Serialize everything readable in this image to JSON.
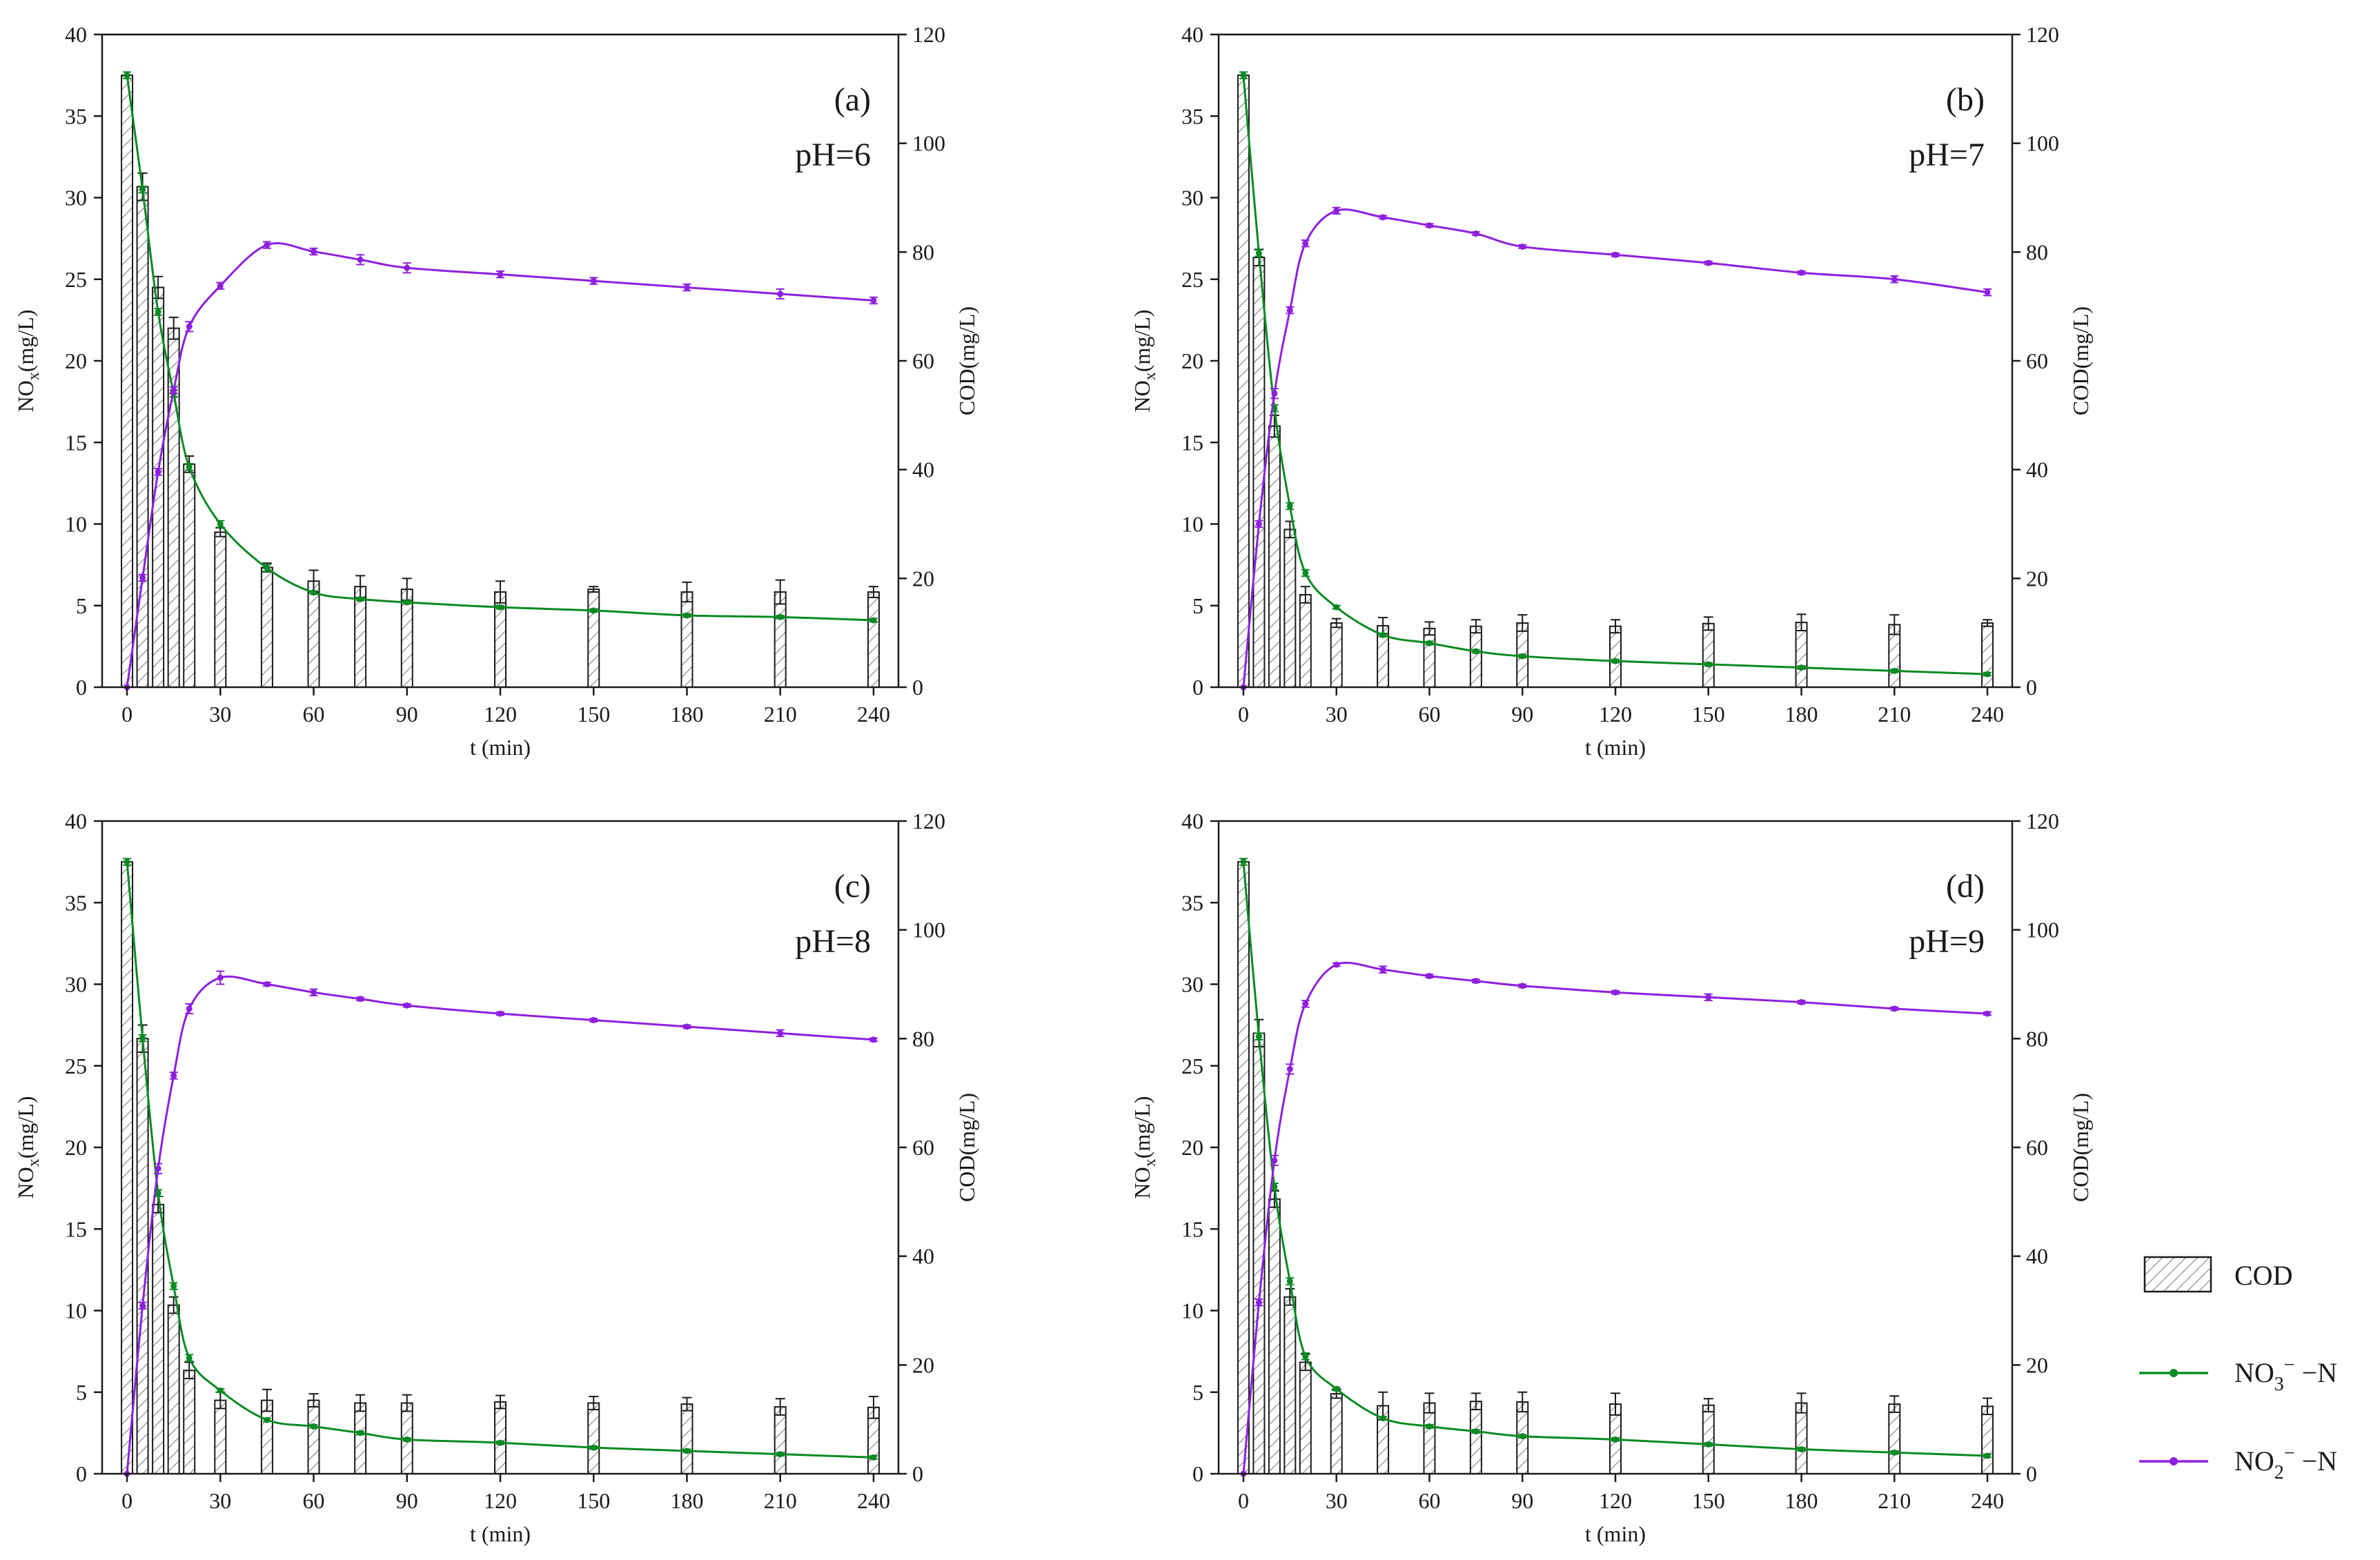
{
  "colors": {
    "nitrate": "#0a8a22",
    "nitrite": "#8f1fe0",
    "bar_edge": "#1a1a1a",
    "hatch": "#8a8a8a"
  },
  "legend": {
    "cod": "COD",
    "nitrate_main": "NO",
    "nitrate_sub": "3",
    "nitrate_sup": "−",
    "nitrate_tail": " −N",
    "nitrite_main": "NO",
    "nitrite_sub": "2",
    "nitrite_sup": "−",
    "nitrite_tail": " −N"
  },
  "chart_data": [
    {
      "type": "bar+line",
      "panel": "(a)",
      "condition": "pH=6",
      "xlabel": "t (min)",
      "ylabel_left_main": "NO",
      "ylabel_left_sub": "x",
      "ylabel_left_tail": "(mg/L)",
      "ylabel_right": "COD(mg/L)",
      "xlim": [
        -8,
        248
      ],
      "ylim_left": [
        0,
        40
      ],
      "ylim_right": [
        0,
        120
      ],
      "x_ticks": [
        0,
        30,
        60,
        90,
        120,
        150,
        180,
        210,
        240
      ],
      "y_left_ticks": [
        0,
        5,
        10,
        15,
        20,
        25,
        30,
        35,
        40
      ],
      "y_right_ticks": [
        0,
        20,
        40,
        60,
        80,
        100,
        120
      ],
      "bar_series": {
        "name": "COD",
        "x": [
          0,
          5,
          10,
          15,
          20,
          30,
          45,
          60,
          75,
          90,
          120,
          150,
          180,
          210,
          240
        ],
        "values": [
          112.5,
          92,
          73.5,
          66,
          41,
          28.5,
          22,
          19.5,
          18.5,
          18,
          17.5,
          18,
          17.5,
          17.5,
          17.5
        ],
        "errors": [
          0,
          2.5,
          2,
          2,
          1.5,
          0.8,
          0.8,
          2,
          2,
          2,
          2,
          0.5,
          1.8,
          2.2,
          1
        ]
      },
      "line_series": [
        {
          "name": "NO3- -N",
          "x": [
            0,
            5,
            10,
            15,
            20,
            30,
            45,
            60,
            75,
            90,
            120,
            150,
            180,
            210,
            240
          ],
          "values": [
            37.5,
            30.5,
            23,
            18,
            13.5,
            10,
            7.3,
            5.8,
            5.4,
            5.2,
            4.9,
            4.7,
            4.4,
            4.3,
            4.1
          ],
          "errors": [
            0.2,
            0.2,
            0.2,
            0.2,
            0.2,
            0.2,
            0.2,
            0.1,
            0.1,
            0.1,
            0.1,
            0.1,
            0.1,
            0.1,
            0.1
          ]
        },
        {
          "name": "NO2- -N",
          "x": [
            0,
            5,
            10,
            15,
            20,
            30,
            45,
            60,
            75,
            90,
            120,
            150,
            180,
            210,
            240
          ],
          "values": [
            0,
            6.7,
            13.2,
            18.2,
            22.1,
            24.6,
            27.1,
            26.7,
            26.2,
            25.7,
            25.3,
            24.9,
            24.5,
            24.1,
            23.7
          ],
          "errors": [
            0,
            0.2,
            0.2,
            0.2,
            0.3,
            0.2,
            0.2,
            0.2,
            0.3,
            0.3,
            0.2,
            0.2,
            0.2,
            0.3,
            0.2
          ]
        }
      ]
    },
    {
      "type": "bar+line",
      "panel": "(b)",
      "condition": "pH=7",
      "xlabel": "t (min)",
      "ylabel_left_main": "NO",
      "ylabel_left_sub": "x",
      "ylabel_left_tail": "(mg/L)",
      "ylabel_right": "COD(mg/L)",
      "xlim": [
        -8,
        248
      ],
      "ylim_left": [
        0,
        40
      ],
      "ylim_right": [
        0,
        120
      ],
      "x_ticks": [
        0,
        30,
        60,
        90,
        120,
        150,
        180,
        210,
        240
      ],
      "y_left_ticks": [
        0,
        5,
        10,
        15,
        20,
        25,
        30,
        35,
        40
      ],
      "y_right_ticks": [
        0,
        20,
        40,
        60,
        80,
        100,
        120
      ],
      "bar_series": {
        "name": "COD",
        "x": [
          0,
          5,
          10,
          15,
          20,
          30,
          45,
          60,
          75,
          90,
          120,
          150,
          180,
          210,
          240
        ],
        "values": [
          112.5,
          79,
          48,
          29,
          17,
          11.8,
          11.3,
          10.8,
          11.2,
          11.8,
          11.2,
          11.7,
          11.9,
          11.5,
          11.8
        ],
        "errors": [
          0,
          1.5,
          2,
          1.5,
          1.5,
          0.8,
          1.5,
          1.2,
          1.2,
          1.5,
          1.2,
          1.2,
          1.5,
          1.8,
          0.6
        ]
      },
      "line_series": [
        {
          "name": "NO3- -N",
          "x": [
            0,
            5,
            10,
            15,
            20,
            30,
            45,
            60,
            75,
            90,
            120,
            150,
            180,
            210,
            240
          ],
          "values": [
            37.5,
            26.6,
            17.1,
            11.1,
            7,
            4.9,
            3.2,
            2.7,
            2.2,
            1.9,
            1.6,
            1.4,
            1.2,
            1,
            0.8
          ],
          "errors": [
            0.2,
            0.2,
            0.2,
            0.2,
            0.2,
            0.1,
            0.1,
            0.1,
            0.1,
            0.1,
            0.1,
            0.1,
            0.1,
            0.1,
            0.1
          ]
        },
        {
          "name": "NO2- -N",
          "x": [
            0,
            5,
            10,
            15,
            20,
            30,
            45,
            60,
            75,
            90,
            120,
            150,
            180,
            210,
            240
          ],
          "values": [
            0,
            10,
            18,
            23.1,
            27.2,
            29.2,
            28.8,
            28.3,
            27.8,
            27,
            26.5,
            26,
            25.4,
            25,
            24.2
          ],
          "errors": [
            0,
            0.2,
            0.3,
            0.2,
            0.2,
            0.2,
            0.1,
            0.1,
            0.1,
            0.1,
            0.1,
            0.1,
            0.1,
            0.2,
            0.2
          ]
        }
      ]
    },
    {
      "type": "bar+line",
      "panel": "(c)",
      "condition": "pH=8",
      "xlabel": "t (min)",
      "ylabel_left_main": "NO",
      "ylabel_left_sub": "x",
      "ylabel_left_tail": "(mg/L)",
      "ylabel_right": "COD(mg/L)",
      "xlim": [
        -8,
        248
      ],
      "ylim_left": [
        0,
        40
      ],
      "ylim_right": [
        0,
        120
      ],
      "x_ticks": [
        0,
        30,
        60,
        90,
        120,
        150,
        180,
        210,
        240
      ],
      "y_left_ticks": [
        0,
        5,
        10,
        15,
        20,
        25,
        30,
        35,
        40
      ],
      "y_right_ticks": [
        0,
        20,
        40,
        60,
        80,
        100,
        120
      ],
      "bar_series": {
        "name": "COD",
        "x": [
          0,
          5,
          10,
          15,
          20,
          30,
          45,
          60,
          75,
          90,
          120,
          150,
          180,
          210,
          240
        ],
        "values": [
          112.5,
          80,
          49.5,
          31,
          19,
          13.5,
          13.5,
          13.5,
          13,
          13,
          13.2,
          13,
          12.8,
          12.3,
          12.2
        ],
        "errors": [
          0,
          2.5,
          1.5,
          1.5,
          1.5,
          1.5,
          2,
          1.2,
          1.5,
          1.5,
          1.2,
          1.2,
          1.2,
          1.5,
          2
        ]
      },
      "line_series": [
        {
          "name": "NO3- -N",
          "x": [
            0,
            5,
            10,
            15,
            20,
            30,
            45,
            60,
            75,
            90,
            120,
            150,
            180,
            210,
            240
          ],
          "values": [
            37.5,
            26.7,
            17.2,
            11.5,
            7.1,
            5.1,
            3.3,
            2.9,
            2.5,
            2.1,
            1.9,
            1.6,
            1.4,
            1.2,
            1
          ],
          "errors": [
            0.2,
            0.2,
            0.2,
            0.2,
            0.2,
            0.1,
            0.1,
            0.1,
            0.1,
            0.1,
            0.1,
            0.1,
            0.1,
            0.1,
            0.1
          ]
        },
        {
          "name": "NO2- -N",
          "x": [
            0,
            5,
            10,
            15,
            20,
            30,
            45,
            60,
            75,
            90,
            120,
            150,
            180,
            210,
            240
          ],
          "values": [
            0,
            10.3,
            18.7,
            24.4,
            28.5,
            30.4,
            30,
            29.5,
            29.1,
            28.7,
            28.2,
            27.8,
            27.4,
            27,
            26.6
          ],
          "errors": [
            0,
            0.2,
            0.3,
            0.2,
            0.3,
            0.4,
            0.1,
            0.2,
            0.1,
            0.1,
            0.1,
            0.1,
            0.1,
            0.2,
            0.1
          ]
        }
      ]
    },
    {
      "type": "bar+line",
      "panel": "(d)",
      "condition": "pH=9",
      "xlabel": "t (min)",
      "ylabel_left_main": "NO",
      "ylabel_left_sub": "x",
      "ylabel_left_tail": "(mg/L)",
      "ylabel_right": "COD(mg/L)",
      "xlim": [
        -8,
        248
      ],
      "ylim_left": [
        0,
        40
      ],
      "ylim_right": [
        0,
        120
      ],
      "x_ticks": [
        0,
        30,
        60,
        90,
        120,
        150,
        180,
        210,
        240
      ],
      "y_left_ticks": [
        0,
        5,
        10,
        15,
        20,
        25,
        30,
        35,
        40
      ],
      "y_right_ticks": [
        0,
        20,
        40,
        60,
        80,
        100,
        120
      ],
      "bar_series": {
        "name": "COD",
        "x": [
          0,
          5,
          10,
          15,
          20,
          30,
          45,
          60,
          75,
          90,
          120,
          150,
          180,
          210,
          240
        ],
        "values": [
          112.5,
          81,
          50.5,
          32.5,
          20.5,
          14.7,
          12.5,
          13,
          13.3,
          13.2,
          12.8,
          12.6,
          13,
          12.8,
          12.4
        ],
        "errors": [
          0,
          2.5,
          1.5,
          1.5,
          1.5,
          0.8,
          2.5,
          1.8,
          1.5,
          1.8,
          2,
          1.2,
          1.8,
          1.5,
          1.5
        ]
      },
      "line_series": [
        {
          "name": "NO3- -N",
          "x": [
            0,
            5,
            10,
            15,
            20,
            30,
            45,
            60,
            75,
            90,
            120,
            150,
            180,
            210,
            240
          ],
          "values": [
            37.5,
            26.8,
            17.6,
            11.8,
            7.2,
            5.2,
            3.4,
            2.9,
            2.6,
            2.3,
            2.1,
            1.8,
            1.5,
            1.3,
            1.1
          ],
          "errors": [
            0.2,
            0.2,
            0.2,
            0.2,
            0.2,
            0.1,
            0.1,
            0.1,
            0.1,
            0.1,
            0.1,
            0.1,
            0.1,
            0.1,
            0.1
          ]
        },
        {
          "name": "NO2- -N",
          "x": [
            0,
            5,
            10,
            15,
            20,
            30,
            45,
            60,
            75,
            90,
            120,
            150,
            180,
            210,
            240
          ],
          "values": [
            0,
            10.5,
            19.2,
            24.8,
            28.8,
            31.2,
            30.9,
            30.5,
            30.2,
            29.9,
            29.5,
            29.2,
            28.9,
            28.5,
            28.2
          ],
          "errors": [
            0,
            0.2,
            0.3,
            0.3,
            0.2,
            0.1,
            0.2,
            0.1,
            0.1,
            0.1,
            0.1,
            0.2,
            0.1,
            0.1,
            0.1
          ]
        }
      ]
    }
  ]
}
